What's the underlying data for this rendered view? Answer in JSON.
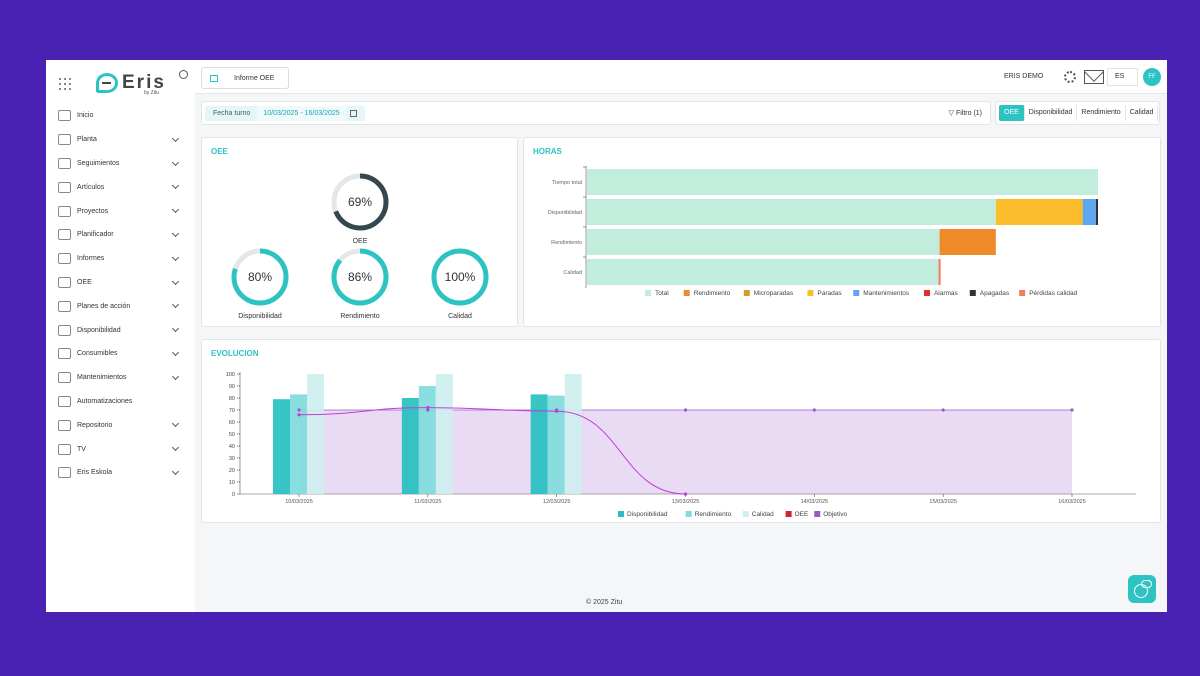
{
  "app": {
    "logo": "Eris",
    "logo_sub": "by Zitu"
  },
  "sidebar": {
    "items": [
      {
        "label": "Inicio",
        "name": "inicio",
        "has_children": false
      },
      {
        "label": "Planta",
        "name": "planta",
        "has_children": true
      },
      {
        "label": "Seguimientos",
        "name": "seguimientos",
        "has_children": true
      },
      {
        "label": "Artículos",
        "name": "articulos",
        "has_children": true
      },
      {
        "label": "Proyectos",
        "name": "proyectos",
        "has_children": true
      },
      {
        "label": "Planificador",
        "name": "planificador",
        "has_children": true
      },
      {
        "label": "Informes",
        "name": "informes",
        "has_children": true
      },
      {
        "label": "OEE",
        "name": "oee",
        "has_children": true
      },
      {
        "label": "Planes de acción",
        "name": "planes-de-accion",
        "has_children": true
      },
      {
        "label": "Disponibilidad",
        "name": "disponibilidad",
        "has_children": true
      },
      {
        "label": "Consumibles",
        "name": "consumibles",
        "has_children": true
      },
      {
        "label": "Mantenimientos",
        "name": "mantenimientos",
        "has_children": true
      },
      {
        "label": "Automatizaciones",
        "name": "automatizaciones",
        "has_children": false
      },
      {
        "label": "Repositorio",
        "name": "repositorio",
        "has_children": true
      },
      {
        "label": "TV",
        "name": "tv",
        "has_children": true
      },
      {
        "label": "Eris Eskola",
        "name": "eris-eskola",
        "has_children": true
      }
    ]
  },
  "topbar": {
    "tab_label": "Informe OEE",
    "user_name": "ERIS DEMO",
    "language": "ES",
    "avatar_initials": "FF"
  },
  "filters": {
    "date_label": "Fecha turno",
    "date_range": "10/03/2025 - 16/03/2025",
    "filter_button": "Filtro (1)"
  },
  "metric_tabs": [
    "OEE",
    "Disponibilidad",
    "Rendimiento",
    "Calidad"
  ],
  "oee_card": {
    "title": "OEE",
    "gauges": [
      {
        "label": "OEE",
        "value": 69,
        "display": "69%",
        "color": "#37474f"
      },
      {
        "label": "Disponibilidad",
        "value": 80,
        "display": "80%",
        "color": "#2dc3c3"
      },
      {
        "label": "Rendimiento",
        "value": 86,
        "display": "86%",
        "color": "#2dc3c3"
      },
      {
        "label": "Calidad",
        "value": 100,
        "display": "100%",
        "color": "#2dc3c3"
      }
    ]
  },
  "hours_card": {
    "title": "HORAS",
    "chart_data": {
      "type": "bar",
      "orientation": "horizontal",
      "stacked": true,
      "categories": [
        "Tiempo total",
        "Disponibilidad",
        "Rendimiento",
        "Calidad"
      ],
      "series": [
        {
          "name": "Total",
          "color": "#c2ecdc",
          "values": [
            100,
            80,
            69,
            68.8
          ]
        },
        {
          "name": "Rendimiento",
          "color": "#ef8a2a",
          "values": [
            0,
            0,
            11,
            0
          ]
        },
        {
          "name": "Microparadas",
          "color": "#d99a2b",
          "values": [
            0,
            0,
            0,
            0
          ]
        },
        {
          "name": "Paradas",
          "color": "#fbbd2b",
          "values": [
            0,
            17,
            0,
            0
          ]
        },
        {
          "name": "Mantenimientos",
          "color": "#5ea8f0",
          "values": [
            0,
            2.6,
            0,
            0
          ]
        },
        {
          "name": "Alarmas",
          "color": "#e02e2e",
          "values": [
            0,
            0,
            0,
            0
          ]
        },
        {
          "name": "Apagadas",
          "color": "#333333",
          "values": [
            0,
            0.4,
            0,
            0
          ]
        },
        {
          "name": "Pérdidas calidad",
          "color": "#f27a5e",
          "values": [
            0,
            0,
            0,
            0.4
          ]
        }
      ],
      "legend": "bottom"
    }
  },
  "evolution_card": {
    "title": "EVOLUCION",
    "chart_data": {
      "type": "bar",
      "categories": [
        "10/03/2025",
        "11/03/2025",
        "12/03/2025",
        "13/03/2025",
        "14/03/2025",
        "15/03/2025",
        "16/03/2025"
      ],
      "y_ticks": [
        0,
        10,
        20,
        30,
        40,
        50,
        60,
        70,
        80,
        90,
        100
      ],
      "ylim": [
        0,
        100
      ],
      "series": [
        {
          "name": "Disponibilidad",
          "type": "bar",
          "color": "#26c0c0",
          "values": [
            79,
            80,
            83,
            null,
            null,
            null,
            null
          ]
        },
        {
          "name": "Rendimiento",
          "type": "bar",
          "color": "#7fdcdc",
          "values": [
            83,
            90,
            82,
            null,
            null,
            null,
            null
          ]
        },
        {
          "name": "Calidad",
          "type": "bar",
          "color": "#cfeff0",
          "values": [
            100,
            100,
            100,
            null,
            null,
            null,
            null
          ]
        },
        {
          "name": "OEE",
          "type": "line",
          "color": "#c53bd6",
          "values": [
            66,
            72,
            69,
            0,
            null,
            null,
            null
          ]
        },
        {
          "name": "Objetivo",
          "type": "area",
          "color": "#9b59c9",
          "values": [
            70,
            70,
            70,
            70,
            70,
            70,
            70
          ]
        }
      ],
      "legend": "bottom"
    }
  },
  "footer": {
    "text": "© 2025 Zitu"
  }
}
